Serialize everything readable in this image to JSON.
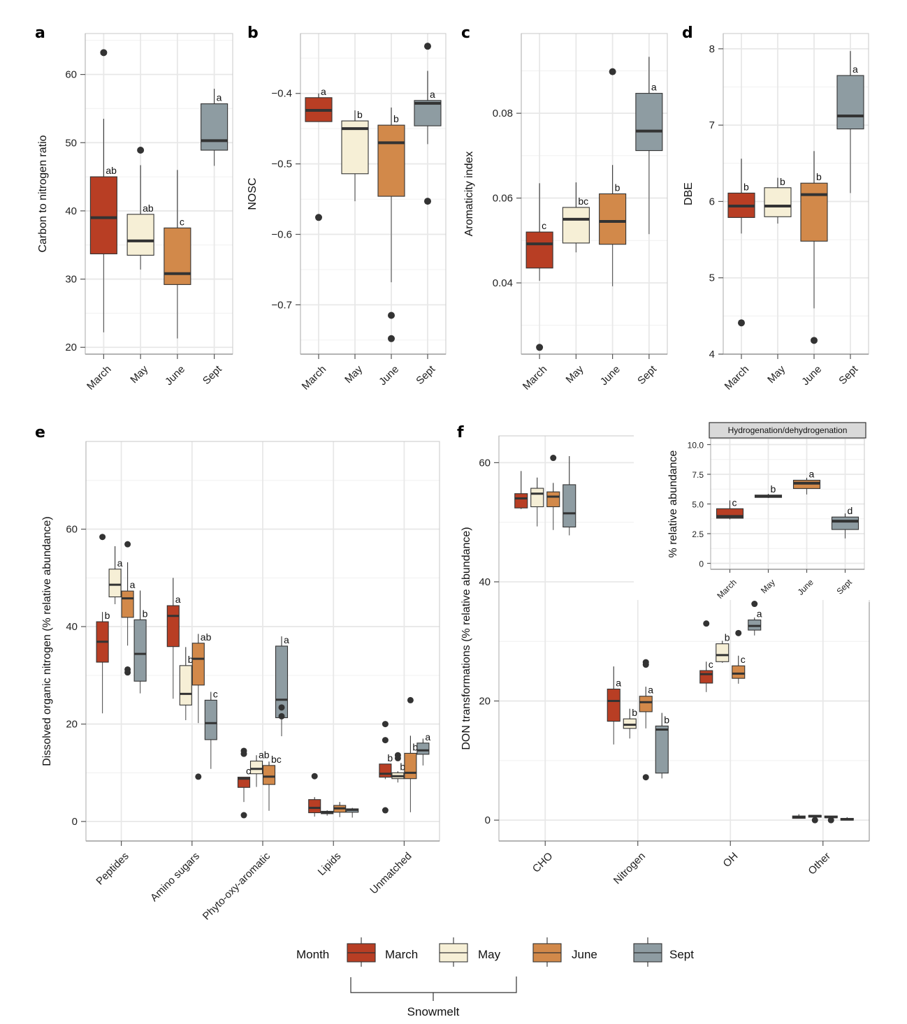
{
  "colors": {
    "March": "#b83e24",
    "May": "#f6efd6",
    "June": "#d2894a",
    "Sept": "#8e9ca2",
    "median": "#333333",
    "outlier": "#333333",
    "grid": "#e8e8e8",
    "panel_border": "#999999"
  },
  "legend": {
    "title": "Month",
    "items": [
      "March",
      "May",
      "June",
      "Sept"
    ],
    "bracket_label": "Snowmelt"
  },
  "chart_data": [
    {
      "panel": "a",
      "type": "box",
      "ylabel": "Carbon to nitrogen ratio",
      "categories": [
        "March",
        "May",
        "June",
        "Sept"
      ],
      "ylim": [
        19,
        66
      ],
      "yticks": [
        20,
        30,
        40,
        50,
        60
      ],
      "grid": true,
      "boxes": [
        {
          "group": "March",
          "min": 22.2,
          "q1": 33.7,
          "median": 39.0,
          "q3": 45.0,
          "max": 53.5,
          "outliers": [
            63.2
          ],
          "sig": "ab"
        },
        {
          "group": "May",
          "min": 31.4,
          "q1": 33.5,
          "median": 35.6,
          "q3": 39.5,
          "max": 46.7,
          "outliers": [
            48.9
          ],
          "sig": "ab"
        },
        {
          "group": "June",
          "min": 21.3,
          "q1": 29.2,
          "median": 30.8,
          "q3": 37.5,
          "max": 46.0,
          "outliers": [],
          "sig": "c"
        },
        {
          "group": "Sept",
          "min": 46.6,
          "q1": 48.9,
          "median": 50.3,
          "q3": 55.7,
          "max": 57.9,
          "outliers": [],
          "sig": "a"
        }
      ]
    },
    {
      "panel": "b",
      "type": "box",
      "ylabel": "NOSC",
      "categories": [
        "March",
        "May",
        "June",
        "Sept"
      ],
      "ylim": [
        -0.77,
        -0.315
      ],
      "yticks": [
        -0.7,
        -0.6,
        -0.5,
        -0.4
      ],
      "ytick_labels": [
        "−0.7",
        "−0.6",
        "−0.5",
        "−0.4"
      ],
      "grid": true,
      "boxes": [
        {
          "group": "March",
          "min": -0.44,
          "q1": -0.44,
          "median": -0.424,
          "q3": -0.406,
          "max": -0.4,
          "outliers": [
            -0.576
          ],
          "sig": "a"
        },
        {
          "group": "May",
          "min": -0.553,
          "q1": -0.514,
          "median": -0.45,
          "q3": -0.439,
          "max": -0.424,
          "outliers": [],
          "sig": "b"
        },
        {
          "group": "June",
          "min": -0.668,
          "q1": -0.546,
          "median": -0.47,
          "q3": -0.445,
          "max": -0.42,
          "outliers": [
            -0.715,
            -0.748
          ],
          "sig": "b"
        },
        {
          "group": "Sept",
          "min": -0.472,
          "q1": -0.446,
          "median": -0.414,
          "q3": -0.41,
          "max": -0.368,
          "outliers": [
            -0.333,
            -0.553
          ],
          "sig": "a"
        }
      ]
    },
    {
      "panel": "c",
      "type": "box",
      "ylabel": "Aromaticity index",
      "categories": [
        "March",
        "May",
        "June",
        "Sept"
      ],
      "ylim": [
        0.0232,
        0.0988
      ],
      "yticks": [
        0.04,
        0.06,
        0.08
      ],
      "ytick_labels": [
        "0.04",
        "0.06",
        "0.08"
      ],
      "grid": true,
      "boxes": [
        {
          "group": "March",
          "min": 0.0405,
          "q1": 0.0435,
          "median": 0.0492,
          "q3": 0.052,
          "max": 0.0635,
          "outliers": [
            0.0248
          ],
          "sig": "c"
        },
        {
          "group": "May",
          "min": 0.0472,
          "q1": 0.0494,
          "median": 0.055,
          "q3": 0.0578,
          "max": 0.0637,
          "outliers": [],
          "sig": "bc"
        },
        {
          "group": "June",
          "min": 0.0392,
          "q1": 0.0491,
          "median": 0.0545,
          "q3": 0.061,
          "max": 0.0678,
          "outliers": [
            0.0898
          ],
          "sig": "b"
        },
        {
          "group": "Sept",
          "min": 0.0515,
          "q1": 0.0712,
          "median": 0.0758,
          "q3": 0.0847,
          "max": 0.0933,
          "outliers": [],
          "sig": "a"
        }
      ]
    },
    {
      "panel": "d",
      "type": "box",
      "ylabel": "DBE",
      "categories": [
        "March",
        "May",
        "June",
        "Sept"
      ],
      "ylim": [
        4.0,
        8.2
      ],
      "yticks": [
        4,
        5,
        6,
        7,
        8
      ],
      "grid": true,
      "boxes": [
        {
          "group": "March",
          "min": 5.58,
          "q1": 5.79,
          "median": 5.94,
          "q3": 6.11,
          "max": 6.56,
          "outliers": [
            4.41
          ],
          "sig": "b"
        },
        {
          "group": "May",
          "min": 5.71,
          "q1": 5.8,
          "median": 5.94,
          "q3": 6.18,
          "max": 6.31,
          "outliers": [],
          "sig": "b"
        },
        {
          "group": "June",
          "min": 4.6,
          "q1": 5.48,
          "median": 6.09,
          "q3": 6.24,
          "max": 6.66,
          "outliers": [
            4.18
          ],
          "sig": "b"
        },
        {
          "group": "Sept",
          "min": 6.11,
          "q1": 6.95,
          "median": 7.12,
          "q3": 7.65,
          "max": 7.97,
          "outliers": [],
          "sig": "a"
        }
      ]
    },
    {
      "panel": "e",
      "type": "grouped-box",
      "ylabel": "Dissolved organic nitrogen (% relative abundance)",
      "categories": [
        "Peptides",
        "Amino sugars",
        "Phyto-oxy-aromatic",
        "Lipids",
        "Unmatched"
      ],
      "groups": [
        "March",
        "May",
        "June",
        "Sept"
      ],
      "ylim": [
        -4,
        78
      ],
      "yticks": [
        0,
        20,
        40,
        60
      ],
      "grid": true,
      "boxes": [
        [
          {
            "group": "March",
            "min": 22.2,
            "q1": 32.7,
            "median": 36.9,
            "q3": 41.0,
            "max": 43.0,
            "outliers": [
              58.4
            ],
            "sig": "b"
          },
          {
            "group": "May",
            "min": 44.6,
            "q1": 46.1,
            "median": 48.6,
            "q3": 51.8,
            "max": 56.5,
            "outliers": [],
            "sig": "a"
          },
          {
            "group": "June",
            "min": 36.1,
            "q1": 41.9,
            "median": 45.8,
            "q3": 47.3,
            "max": 53.2,
            "outliers": [
              56.9,
              31.2,
              30.6
            ],
            "sig": "a"
          },
          {
            "group": "Sept",
            "min": 26.3,
            "q1": 28.8,
            "median": 34.4,
            "q3": 41.4,
            "max": 47.4,
            "outliers": [],
            "sig": "b"
          }
        ],
        [
          {
            "group": "March",
            "min": 25.2,
            "q1": 35.9,
            "median": 42.2,
            "q3": 44.3,
            "max": 50.0,
            "outliers": [],
            "sig": "a"
          },
          {
            "group": "May",
            "min": 20.8,
            "q1": 23.9,
            "median": 26.2,
            "q3": 32.0,
            "max": 35.8,
            "outliers": [],
            "sig": "bc"
          },
          {
            "group": "June",
            "min": 20.2,
            "q1": 28.0,
            "median": 33.4,
            "q3": 36.6,
            "max": 38.5,
            "outliers": [
              9.2
            ],
            "sig": "ab"
          },
          {
            "group": "Sept",
            "min": 10.8,
            "q1": 16.8,
            "median": 20.2,
            "q3": 24.9,
            "max": 26.6,
            "outliers": [],
            "sig": "c"
          }
        ],
        [
          {
            "group": "March",
            "min": 4.0,
            "q1": 7.0,
            "median": 8.8,
            "q3": 9.1,
            "max": 9.1,
            "outliers": [
              14.5,
              13.9,
              1.3
            ],
            "sig": "c"
          },
          {
            "group": "May",
            "min": 7.1,
            "q1": 9.8,
            "median": 10.8,
            "q3": 12.4,
            "max": 13.6,
            "outliers": [],
            "sig": "ab"
          },
          {
            "group": "June",
            "min": 2.2,
            "q1": 7.6,
            "median": 9.2,
            "q3": 11.5,
            "max": 12.3,
            "outliers": [],
            "sig": "bc"
          },
          {
            "group": "Sept",
            "min": 17.5,
            "q1": 21.3,
            "median": 25.0,
            "q3": 36.0,
            "max": 38.0,
            "outliers": [
              23.4,
              21.6
            ],
            "sig": "a"
          }
        ],
        [
          {
            "group": "March",
            "min": 1.0,
            "q1": 1.8,
            "median": 2.8,
            "q3": 4.5,
            "max": 5.0,
            "outliers": [
              9.3
            ],
            "sig": ""
          },
          {
            "group": "May",
            "min": 1.2,
            "q1": 1.6,
            "median": 1.8,
            "q3": 2.1,
            "max": 2.3,
            "outliers": [],
            "sig": ""
          },
          {
            "group": "June",
            "min": 0.9,
            "q1": 1.9,
            "median": 2.7,
            "q3": 3.3,
            "max": 4.0,
            "outliers": [],
            "sig": ""
          },
          {
            "group": "Sept",
            "min": 0.8,
            "q1": 1.9,
            "median": 2.4,
            "q3": 2.6,
            "max": 2.8,
            "outliers": [],
            "sig": ""
          }
        ],
        [
          {
            "group": "March",
            "min": 8.7,
            "q1": 9.1,
            "median": 9.8,
            "q3": 11.8,
            "max": 11.8,
            "outliers": [
              20.0,
              16.7,
              2.3
            ],
            "sig": "b"
          },
          {
            "group": "May",
            "min": 8.0,
            "q1": 8.8,
            "median": 9.3,
            "q3": 10.0,
            "max": 10.3,
            "outliers": [
              13.6,
              13.0
            ],
            "sig": "b"
          },
          {
            "group": "June",
            "min": 1.9,
            "q1": 8.8,
            "median": 10.0,
            "q3": 14.0,
            "max": 17.6,
            "outliers": [
              24.9
            ],
            "sig": "b"
          },
          {
            "group": "Sept",
            "min": 11.5,
            "q1": 13.8,
            "median": 14.6,
            "q3": 16.1,
            "max": 17.0,
            "outliers": [],
            "sig": "a"
          }
        ]
      ]
    },
    {
      "panel": "f",
      "type": "grouped-box",
      "ylabel": "DON transformations (% relative abundance)",
      "categories": [
        "CHO",
        "Nitrogen",
        "OH",
        "Other"
      ],
      "groups": [
        "March",
        "May",
        "June",
        "Sept"
      ],
      "ylim": [
        -3.5,
        64.5
      ],
      "yticks": [
        0,
        20,
        40,
        60
      ],
      "grid": true,
      "boxes": [
        [
          {
            "group": "March",
            "min": 52.2,
            "q1": 52.4,
            "median": 54.0,
            "q3": 54.8,
            "max": 58.6,
            "outliers": [],
            "sig": ""
          },
          {
            "group": "May",
            "min": 49.3,
            "q1": 52.6,
            "median": 54.8,
            "q3": 55.7,
            "max": 57.5,
            "outliers": [],
            "sig": ""
          },
          {
            "group": "June",
            "min": 48.7,
            "q1": 52.6,
            "median": 54.3,
            "q3": 55.1,
            "max": 56.6,
            "outliers": [
              60.8
            ],
            "sig": ""
          },
          {
            "group": "Sept",
            "min": 47.8,
            "q1": 49.2,
            "median": 51.5,
            "q3": 56.3,
            "max": 61.1,
            "outliers": [],
            "sig": ""
          }
        ],
        [
          {
            "group": "March",
            "min": 12.7,
            "q1": 16.6,
            "median": 20.0,
            "q3": 22.0,
            "max": 25.8,
            "outliers": [],
            "sig": "a"
          },
          {
            "group": "May",
            "min": 13.7,
            "q1": 15.4,
            "median": 16.0,
            "q3": 17.0,
            "max": 18.7,
            "outliers": [],
            "sig": "b"
          },
          {
            "group": "June",
            "min": 15.4,
            "q1": 18.2,
            "median": 19.8,
            "q3": 20.8,
            "max": 22.4,
            "outliers": [
              26.5,
              26.1,
              7.2
            ],
            "sig": "a"
          },
          {
            "group": "Sept",
            "min": 7.0,
            "q1": 7.9,
            "median": 15.2,
            "q3": 15.8,
            "max": 18.0,
            "outliers": [],
            "sig": "b"
          }
        ],
        [
          {
            "group": "March",
            "min": 21.5,
            "q1": 23.0,
            "median": 24.5,
            "q3": 25.1,
            "max": 26.6,
            "outliers": [
              33.0
            ],
            "sig": "c"
          },
          {
            "group": "May",
            "min": 26.4,
            "q1": 26.6,
            "median": 27.7,
            "q3": 29.6,
            "max": 30.1,
            "outliers": [],
            "sig": "b"
          },
          {
            "group": "June",
            "min": 22.9,
            "q1": 23.8,
            "median": 24.6,
            "q3": 25.9,
            "max": 27.6,
            "outliers": [
              31.4
            ],
            "sig": "c"
          },
          {
            "group": "Sept",
            "min": 31.0,
            "q1": 31.9,
            "median": 32.6,
            "q3": 33.6,
            "max": 34.0,
            "outliers": [
              36.3
            ],
            "sig": "a"
          }
        ],
        [
          {
            "group": "March",
            "min": 0.3,
            "q1": 0.3,
            "median": 0.5,
            "q3": 0.7,
            "max": 1.0,
            "outliers": [],
            "sig": ""
          },
          {
            "group": "May",
            "min": 0.5,
            "q1": 0.5,
            "median": 0.7,
            "q3": 0.8,
            "max": 0.8,
            "outliers": [
              0.0
            ],
            "sig": ""
          },
          {
            "group": "June",
            "min": 0.4,
            "q1": 0.4,
            "median": 0.5,
            "q3": 0.7,
            "max": 0.7,
            "outliers": [
              0.0
            ],
            "sig": ""
          },
          {
            "group": "Sept",
            "min": 0.0,
            "q1": 0.0,
            "median": 0.1,
            "q3": 0.3,
            "max": 0.5,
            "outliers": [],
            "sig": ""
          }
        ]
      ]
    },
    {
      "panel": "f-inset",
      "type": "box",
      "strip_title": "Hydrogenation/dehydrogenation",
      "ylabel": "% relative abundance",
      "categories": [
        "March",
        "May",
        "June",
        "Sept"
      ],
      "ylim": [
        -0.5,
        10.5
      ],
      "yticks": [
        0,
        2.5,
        5.0,
        7.5,
        10.0
      ],
      "ytick_labels": [
        "0",
        "2.5",
        "5.0",
        "7.5",
        "10.0"
      ],
      "grid": true,
      "boxes": [
        {
          "group": "March",
          "min": 3.7,
          "q1": 3.8,
          "median": 3.95,
          "q3": 4.6,
          "max": 5.3,
          "outliers": [],
          "sig": "c"
        },
        {
          "group": "May",
          "min": 5.5,
          "q1": 5.55,
          "median": 5.65,
          "q3": 5.75,
          "max": 5.85,
          "outliers": [],
          "sig": "b"
        },
        {
          "group": "June",
          "min": 5.8,
          "q1": 6.3,
          "median": 6.75,
          "q3": 7.0,
          "max": 7.2,
          "outliers": [],
          "sig": "a"
        },
        {
          "group": "Sept",
          "min": 2.1,
          "q1": 2.85,
          "median": 3.55,
          "q3": 3.9,
          "max": 4.2,
          "outliers": [],
          "sig": "d"
        }
      ]
    }
  ]
}
